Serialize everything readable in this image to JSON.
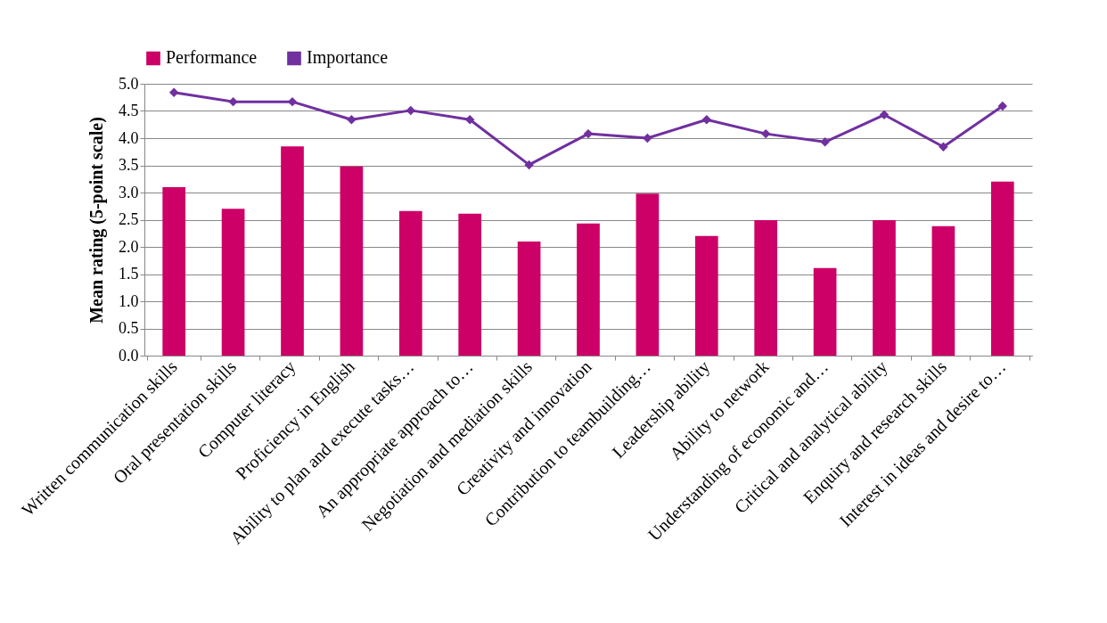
{
  "chart_data": {
    "type": "bar",
    "ylabel": "Mean rating (5-point scale)",
    "categories": [
      "Written communication skills",
      "Oral presentation skills",
      "Computer literacy",
      "Proficiency in English",
      "Ability to plan and execute tasks…",
      "An appropriate approach to…",
      "Negotiation and mediation skills",
      "Creativity and innovation",
      "Contribution to teambuilding…",
      "Leadership ability",
      "Ability to network",
      "Understanding of economic and…",
      "Critical and analytical ability",
      "Enquiry and research skills",
      "Interest in ideas and desire to…"
    ],
    "series": [
      {
        "name": "Performance",
        "color": "#cc0066",
        "values": [
          3.1,
          2.7,
          3.85,
          3.48,
          2.66,
          2.61,
          2.1,
          2.43,
          2.98,
          2.2,
          2.49,
          1.61,
          2.49,
          2.38,
          3.2
        ]
      },
      {
        "name": "Importance",
        "type": "line",
        "color": "#7030a0",
        "marker": "diamond",
        "values": [
          4.84,
          4.67,
          4.67,
          4.34,
          4.51,
          4.34,
          3.51,
          4.08,
          4.0,
          4.34,
          4.08,
          3.93,
          4.43,
          3.84,
          4.59
        ]
      }
    ],
    "ylim": [
      0,
      5
    ],
    "yticks": [
      {
        "value": 0,
        "label": "0.0"
      },
      {
        "value": 0.5,
        "label": "0.5"
      },
      {
        "value": 1,
        "label": "1.0"
      },
      {
        "value": 1.5,
        "label": "1.5"
      },
      {
        "value": 2,
        "label": "2.0"
      },
      {
        "value": 2.5,
        "label": "2.5"
      },
      {
        "value": 3,
        "label": "3.0"
      },
      {
        "value": 3.5,
        "label": "3.5"
      },
      {
        "value": 4,
        "label": "4.0"
      },
      {
        "value": 4.5,
        "label": "4.5"
      },
      {
        "value": 5,
        "label": "5.0"
      }
    ],
    "grid": "y",
    "legend": "top"
  }
}
